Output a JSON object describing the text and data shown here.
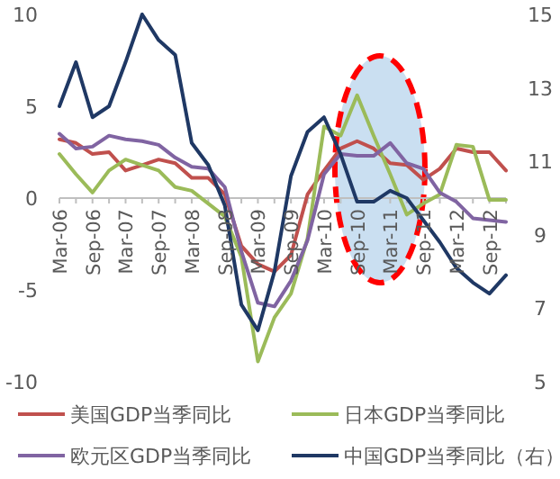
{
  "chart_data": {
    "type": "line",
    "categories": [
      "Mar-06",
      null,
      "Sep-06",
      null,
      "Mar-07",
      null,
      "Sep-07",
      null,
      "Mar-08",
      null,
      "Sep-08",
      null,
      "Mar-09",
      null,
      "Sep-09",
      null,
      "Mar-10",
      null,
      "Sep-10",
      null,
      "Mar-11",
      null,
      "Sep-11",
      null,
      "Mar-12",
      null,
      "Sep-12",
      null
    ],
    "series": [
      {
        "name": "美国GDP当季同比",
        "color": "#c0504d",
        "values": [
          3.2,
          3.0,
          2.4,
          2.5,
          1.5,
          1.8,
          2.1,
          1.9,
          1.1,
          1.1,
          0.2,
          -2.6,
          -3.6,
          -4.0,
          -3.1,
          0.2,
          1.5,
          2.7,
          3.1,
          2.7,
          1.9,
          1.8,
          1.0,
          1.6,
          2.7,
          2.5,
          2.5,
          1.5
        ]
      },
      {
        "name": "日本GDP当季同比",
        "color": "#9bbb59",
        "values": [
          2.4,
          1.3,
          0.3,
          1.5,
          2.1,
          1.8,
          1.5,
          0.6,
          0.4,
          -0.3,
          -1.0,
          -3.2,
          -8.9,
          -6.5,
          -5.2,
          -2.2,
          3.9,
          3.4,
          5.6,
          3.4,
          1.3,
          -0.9,
          -0.3,
          0.2,
          2.9,
          2.8,
          -0.1,
          -0.1
        ]
      },
      {
        "name": "欧元区GDP当季同比",
        "color": "#8064a2",
        "values": [
          3.5,
          2.7,
          2.8,
          3.4,
          3.2,
          3.1,
          2.9,
          2.2,
          1.7,
          1.6,
          0.6,
          -2.9,
          -5.7,
          -5.9,
          -4.5,
          -2.3,
          1.3,
          2.4,
          2.3,
          2.3,
          3.0,
          1.9,
          1.6,
          0.3,
          -0.2,
          -1.1,
          -1.2,
          -1.3
        ]
      },
      {
        "name": "中国GDP当季同比（右）",
        "color": "#1f3864",
        "axis": "y2",
        "values": [
          12.5,
          13.7,
          12.2,
          12.5,
          13.7,
          15.0,
          14.3,
          13.9,
          11.5,
          10.9,
          9.8,
          7.1,
          6.4,
          8.0,
          10.6,
          11.8,
          12.2,
          11.2,
          9.9,
          9.9,
          10.2,
          10.0,
          9.4,
          8.8,
          8.1,
          7.7,
          7.4,
          7.9
        ]
      }
    ],
    "ylim": [
      -10,
      10
    ],
    "yticks": [
      -10,
      -5,
      0,
      5,
      10
    ],
    "y2lim": [
      5,
      15
    ],
    "y2ticks": [
      5,
      7,
      9,
      11,
      13,
      15
    ],
    "legend": "bottom"
  }
}
